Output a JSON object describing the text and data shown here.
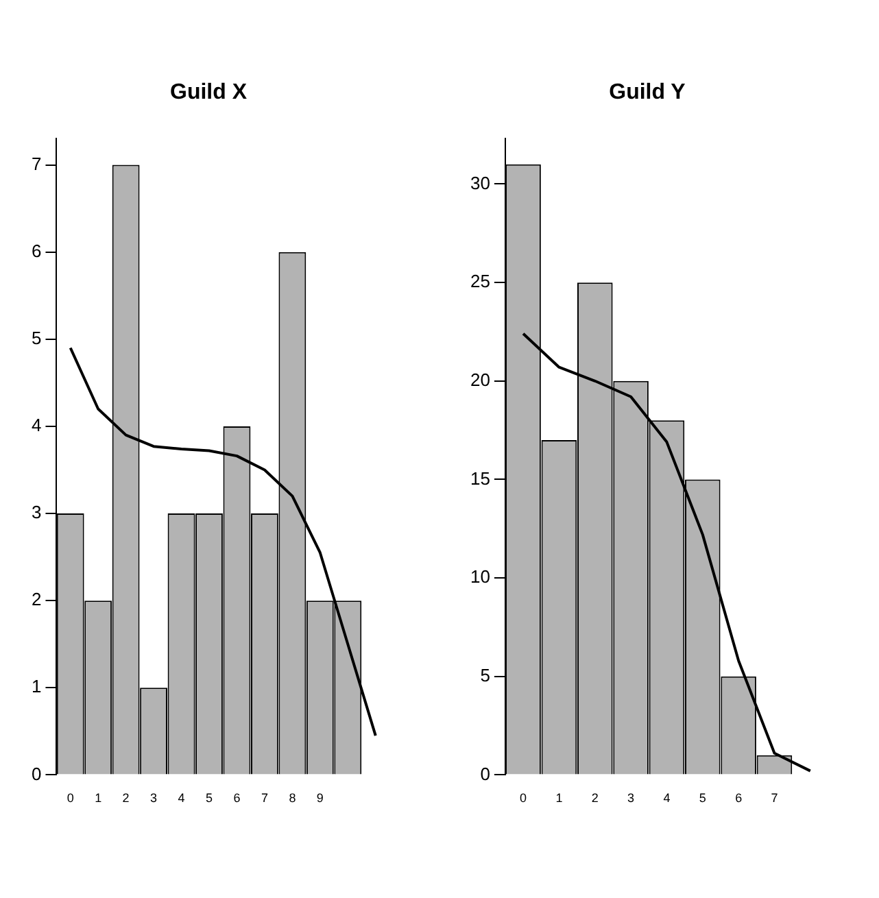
{
  "chart_data": [
    {
      "type": "bar",
      "title": "Guild X",
      "categories": [
        "0",
        "1",
        "2",
        "3",
        "4",
        "5",
        "6",
        "7",
        "8",
        "9",
        null,
        null
      ],
      "series": [
        {
          "color": "#b3b3b3",
          "values": [
            3,
            2,
            7,
            1,
            3,
            3,
            4,
            3,
            6,
            2,
            2,
            null
          ]
        },
        {
          "type": "line",
          "color": "#000000",
          "values": [
            4.9,
            4.2,
            3.9,
            3.77,
            3.74,
            3.72,
            3.66,
            3.5,
            3.2,
            2.55,
            1.5,
            0.45
          ]
        }
      ],
      "ylim": [
        0,
        7.3
      ],
      "yticks": [
        0,
        1,
        2,
        3,
        4,
        5,
        6,
        7
      ],
      "grid": false,
      "legend": false,
      "marker": "none"
    },
    {
      "type": "bar",
      "title": "Guild Y",
      "categories": [
        "0",
        "1",
        "2",
        "3",
        "4",
        "5",
        "6",
        "7",
        null
      ],
      "series": [
        {
          "color": "#b3b3b3",
          "values": [
            31,
            17,
            25,
            20,
            18,
            15,
            5,
            1,
            null
          ]
        },
        {
          "type": "line",
          "color": "#000000",
          "values": [
            22.4,
            20.7,
            20,
            19.2,
            16.9,
            12.2,
            5.8,
            1.1,
            0.2
          ]
        }
      ],
      "ylim": [
        0,
        32.3
      ],
      "yticks": [
        0,
        5,
        10,
        15,
        20,
        25,
        30
      ],
      "grid": false,
      "legend": false,
      "marker": "none"
    }
  ]
}
